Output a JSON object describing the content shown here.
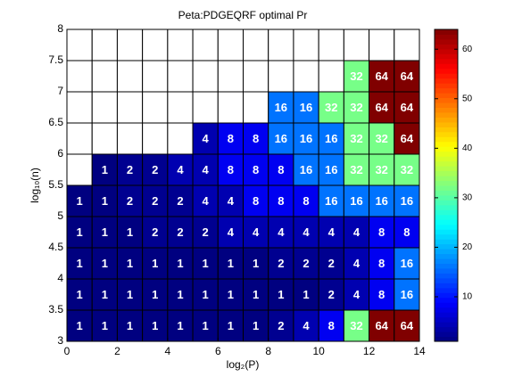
{
  "chart_data": {
    "type": "heatmap",
    "title": "Peta:PDGEQRF optimal Pr",
    "xlabel": "log₂(P)",
    "ylabel": "log₁₀(n)",
    "xlim": [
      0,
      14
    ],
    "xticks": [
      0,
      2,
      4,
      6,
      8,
      10,
      12,
      14
    ],
    "ylim": [
      3,
      8
    ],
    "yticks": [
      3,
      3.5,
      4,
      4.5,
      5,
      5.5,
      6,
      6.5,
      7,
      7.5,
      8
    ],
    "colormap": "jet",
    "clim": [
      1,
      64
    ],
    "colorbar_ticks": [
      10,
      20,
      30,
      40,
      50,
      60
    ],
    "z": [
      [
        1,
        1,
        1,
        1,
        1,
        1,
        1,
        1,
        2,
        4,
        8,
        32,
        64,
        64
      ],
      [
        1,
        1,
        1,
        1,
        1,
        1,
        1,
        1,
        1,
        1,
        2,
        4,
        8,
        16
      ],
      [
        1,
        1,
        1,
        1,
        1,
        1,
        1,
        1,
        2,
        2,
        2,
        4,
        8,
        16
      ],
      [
        1,
        1,
        1,
        2,
        2,
        2,
        4,
        4,
        4,
        4,
        4,
        4,
        8,
        8
      ],
      [
        1,
        1,
        2,
        2,
        2,
        4,
        4,
        8,
        8,
        8,
        16,
        16,
        16,
        16
      ],
      [
        null,
        1,
        2,
        2,
        4,
        4,
        8,
        8,
        8,
        16,
        16,
        32,
        32,
        32
      ],
      [
        null,
        null,
        null,
        null,
        null,
        4,
        8,
        8,
        16,
        16,
        16,
        32,
        32,
        64
      ],
      [
        null,
        null,
        null,
        null,
        null,
        null,
        null,
        null,
        16,
        16,
        32,
        32,
        64,
        64
      ],
      [
        null,
        null,
        null,
        null,
        null,
        null,
        null,
        null,
        null,
        null,
        null,
        32,
        64,
        64
      ],
      [
        null,
        null,
        null,
        null,
        null,
        null,
        null,
        null,
        null,
        null,
        null,
        null,
        null,
        null
      ]
    ]
  }
}
